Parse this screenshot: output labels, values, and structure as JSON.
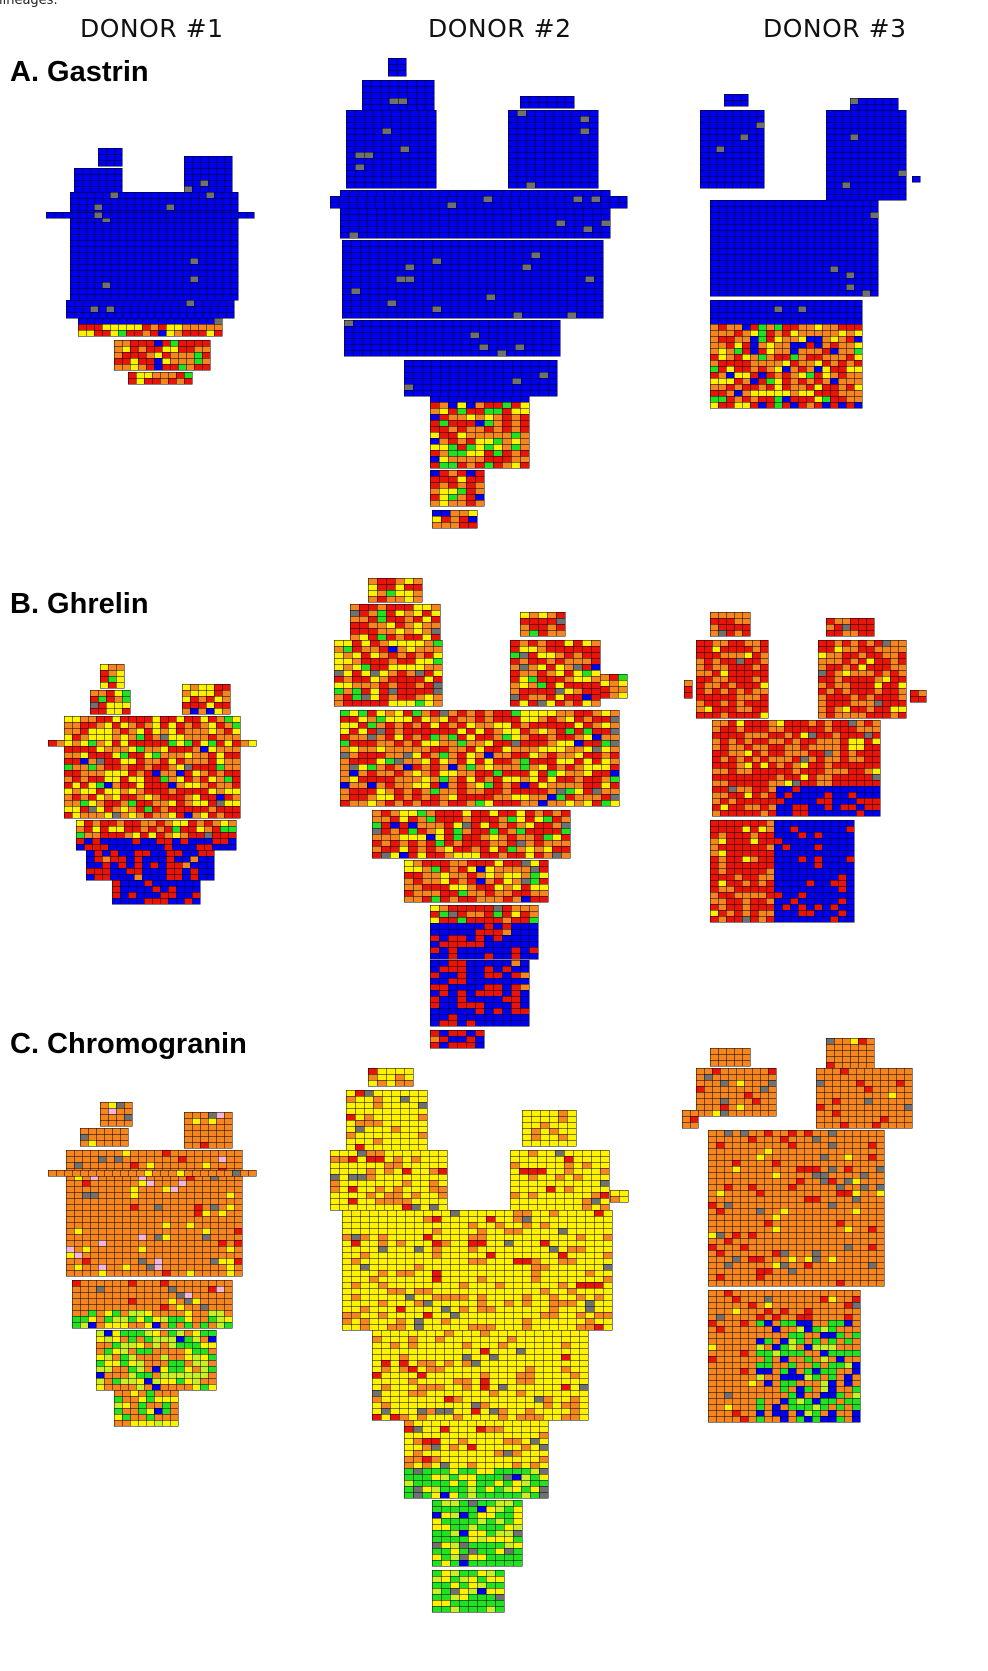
{
  "caption_fragment": "lineages.",
  "donors": [
    "DONOR #1",
    "DONOR #2",
    "DONOR #3"
  ],
  "panels": [
    {
      "label": "A. Gastrin",
      "marker": "gastrin"
    },
    {
      "label": "B. Ghrelin",
      "marker": "ghrelin"
    },
    {
      "label": "C. Chromogranin",
      "marker": "chromogranin"
    }
  ],
  "colors": {
    "blue": "#0000ee",
    "red": "#e8140a",
    "orange_red": "#ff4a00",
    "orange": "#f5851f",
    "yellow": "#fff200",
    "yellow_green": "#c8f024",
    "green": "#22e022",
    "grey": "#707070",
    "pink": "#f4b6d8"
  }
}
